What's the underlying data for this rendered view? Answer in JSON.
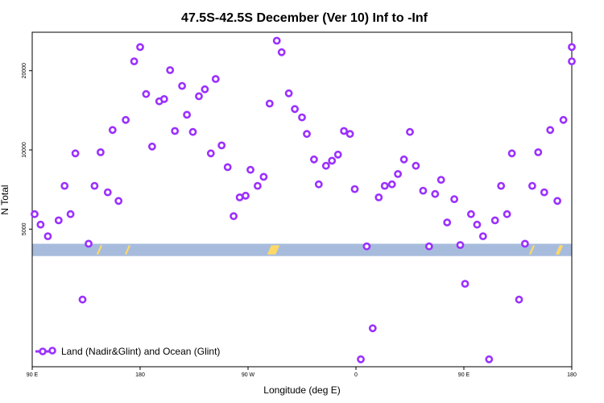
{
  "chart_data": {
    "type": "scatter",
    "title": "47.5S-42.5S December (Ver 10)   Inf to -Inf",
    "xlabel": "Longitude (deg E)",
    "ylabel": "N Total",
    "x_ticks": [
      {
        "value": 90,
        "label": "90 E"
      },
      {
        "value": 180,
        "label": "180"
      },
      {
        "value": 270,
        "label": "90 W"
      },
      {
        "value": 360,
        "label": "0"
      },
      {
        "value": 450,
        "label": "90 E"
      },
      {
        "value": 540,
        "label": "180"
      }
    ],
    "y_ticks": [
      5000,
      10000,
      20000
    ],
    "y_scale": "log",
    "xlim": [
      90,
      540
    ],
    "ylim": [
      1500,
      28000
    ],
    "grid": false,
    "legend": {
      "position": "bottom-left",
      "entries": [
        "Land (Nadir&Glint) and Ocean (Glint)"
      ]
    },
    "colors": {
      "points": "#9b30ff",
      "band": "#a7bcdc",
      "band_marks": "#ffd966"
    },
    "band": {
      "y_low": 3950,
      "y_high": 4400
    },
    "series": [
      {
        "name": "Land (Nadir&Glint) and Ocean (Glint)",
        "points": [
          [
            92,
            5700
          ],
          [
            97,
            5200
          ],
          [
            103,
            4700
          ],
          [
            112,
            5400
          ],
          [
            117,
            7300
          ],
          [
            122,
            5700
          ],
          [
            126,
            9700
          ],
          [
            132,
            2700
          ],
          [
            137,
            4400
          ],
          [
            142,
            7300
          ],
          [
            147,
            9800
          ],
          [
            153,
            6900
          ],
          [
            157,
            11900
          ],
          [
            162,
            6400
          ],
          [
            168,
            13000
          ],
          [
            175,
            21700
          ],
          [
            180,
            24600
          ],
          [
            185,
            16300
          ],
          [
            190,
            10300
          ],
          [
            196,
            15300
          ],
          [
            200,
            15600
          ],
          [
            205,
            20100
          ],
          [
            209,
            11800
          ],
          [
            215,
            17500
          ],
          [
            219,
            13600
          ],
          [
            224,
            11700
          ],
          [
            229,
            16000
          ],
          [
            234,
            17000
          ],
          [
            239,
            9700
          ],
          [
            243,
            18600
          ],
          [
            248,
            10400
          ],
          [
            253,
            8600
          ],
          [
            258,
            5600
          ],
          [
            263,
            6600
          ],
          [
            268,
            6700
          ],
          [
            272,
            8400
          ],
          [
            278,
            7300
          ],
          [
            283,
            7900
          ],
          [
            288,
            15000
          ],
          [
            294,
            26000
          ],
          [
            298,
            23500
          ],
          [
            304,
            16400
          ],
          [
            309,
            14300
          ],
          [
            315,
            13300
          ],
          [
            319,
            11500
          ],
          [
            325,
            9200
          ],
          [
            329,
            7400
          ],
          [
            335,
            8700
          ],
          [
            340,
            9100
          ],
          [
            345,
            9600
          ],
          [
            350,
            11800
          ],
          [
            355,
            11500
          ],
          [
            359,
            7100
          ],
          [
            364,
            1600
          ],
          [
            369,
            4300
          ],
          [
            374,
            2100
          ],
          [
            379,
            6600
          ],
          [
            384,
            7300
          ],
          [
            390,
            7400
          ],
          [
            395,
            8100
          ],
          [
            400,
            9200
          ],
          [
            405,
            11700
          ],
          [
            410,
            8700
          ],
          [
            416,
            7000
          ],
          [
            421,
            4300
          ],
          [
            426,
            6800
          ],
          [
            431,
            7700
          ],
          [
            436,
            5300
          ],
          [
            442,
            6500
          ],
          [
            447,
            4350
          ],
          [
            451,
            3100
          ],
          [
            456,
            5700
          ],
          [
            461,
            5200
          ],
          [
            466,
            4700
          ],
          [
            471,
            1600
          ],
          [
            476,
            5400
          ],
          [
            481,
            7300
          ],
          [
            486,
            5700
          ],
          [
            490,
            9700
          ],
          [
            496,
            2700
          ],
          [
            501,
            4400
          ],
          [
            507,
            7300
          ],
          [
            512,
            9800
          ],
          [
            517,
            6900
          ],
          [
            522,
            11900
          ],
          [
            528,
            6400
          ],
          [
            533,
            13000
          ],
          [
            540,
            21700
          ],
          [
            540,
            24600
          ]
        ]
      }
    ]
  }
}
